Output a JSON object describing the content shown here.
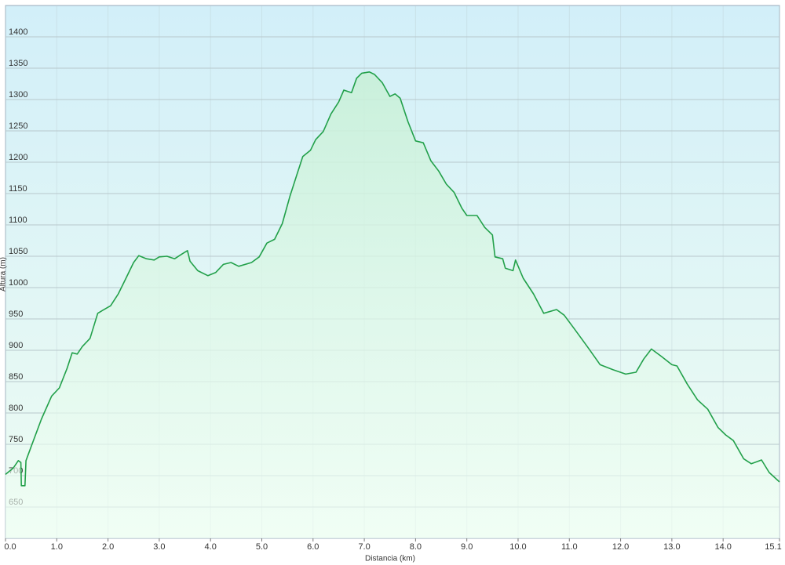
{
  "chart_data": {
    "type": "area",
    "y_label": "Altura (m)",
    "x_label": "Distancia (km)",
    "color": "#22a04a",
    "grid": true,
    "xlim": [
      0,
      15.1
    ],
    "ylim": [
      600,
      1450
    ],
    "xticks": [
      {
        "value": 0,
        "label": "0.0"
      },
      {
        "value": 1,
        "label": "1.0"
      },
      {
        "value": 2,
        "label": "2.0"
      },
      {
        "value": 3,
        "label": "3.0"
      },
      {
        "value": 4,
        "label": "4.0"
      },
      {
        "value": 5,
        "label": "5.0"
      },
      {
        "value": 6,
        "label": "6.0"
      },
      {
        "value": 7,
        "label": "7.0"
      },
      {
        "value": 8,
        "label": "8.0"
      },
      {
        "value": 9,
        "label": "9.0"
      },
      {
        "value": 10,
        "label": "10.0"
      },
      {
        "value": 11,
        "label": "11.0"
      },
      {
        "value": 12,
        "label": "12.0"
      },
      {
        "value": 13,
        "label": "13.0"
      },
      {
        "value": 14,
        "label": "14.0"
      },
      {
        "value": 15.1,
        "label": "15.1"
      }
    ],
    "yticks": [
      650,
      700,
      750,
      800,
      850,
      900,
      950,
      1000,
      1050,
      1100,
      1150,
      1200,
      1250,
      1300,
      1350,
      1400
    ],
    "x": [
      0,
      0.15,
      0.25,
      0.3,
      0.31,
      0.38,
      0.4,
      0.5,
      0.7,
      0.9,
      1.05,
      1.2,
      1.3,
      1.4,
      1.5,
      1.65,
      1.8,
      1.9,
      2.05,
      2.2,
      2.35,
      2.5,
      2.6,
      2.75,
      2.9,
      3.0,
      3.15,
      3.3,
      3.45,
      3.55,
      3.6,
      3.75,
      3.95,
      4.1,
      4.25,
      4.4,
      4.55,
      4.8,
      4.95,
      5.1,
      5.25,
      5.4,
      5.55,
      5.7,
      5.8,
      5.95,
      6.05,
      6.2,
      6.35,
      6.5,
      6.6,
      6.75,
      6.85,
      6.95,
      7.1,
      7.2,
      7.35,
      7.5,
      7.6,
      7.7,
      7.85,
      8.0,
      8.15,
      8.3,
      8.45,
      8.6,
      8.75,
      8.9,
      9.0,
      9.2,
      9.35,
      9.5,
      9.55,
      9.7,
      9.75,
      9.9,
      9.95,
      10.1,
      10.3,
      10.5,
      10.75,
      10.9,
      11.1,
      11.35,
      11.6,
      11.85,
      12.1,
      12.3,
      12.45,
      12.6,
      12.8,
      13.0,
      13.1,
      13.3,
      13.5,
      13.7,
      13.9,
      14.05,
      14.2,
      14.4,
      14.55,
      14.75,
      14.9,
      15.1
    ],
    "values": [
      702,
      712,
      724,
      721,
      684,
      684,
      724,
      746,
      790,
      827,
      840,
      871,
      896,
      894,
      906,
      919,
      959,
      964,
      971,
      990,
      1015,
      1040,
      1051,
      1046,
      1044,
      1049,
      1050,
      1046,
      1054,
      1059,
      1042,
      1027,
      1019,
      1024,
      1037,
      1040,
      1034,
      1040,
      1049,
      1071,
      1077,
      1102,
      1146,
      1184,
      1209,
      1219,
      1236,
      1249,
      1277,
      1296,
      1315,
      1311,
      1334,
      1342,
      1344,
      1340,
      1327,
      1305,
      1309,
      1302,
      1265,
      1234,
      1231,
      1202,
      1186,
      1165,
      1152,
      1127,
      1115,
      1115,
      1096,
      1084,
      1049,
      1046,
      1031,
      1027,
      1044,
      1015,
      990,
      959,
      965,
      956,
      934,
      906,
      877,
      869,
      862,
      865,
      886,
      902,
      890,
      877,
      875,
      846,
      821,
      806,
      777,
      765,
      756,
      727,
      719,
      725,
      705,
      690
    ]
  }
}
